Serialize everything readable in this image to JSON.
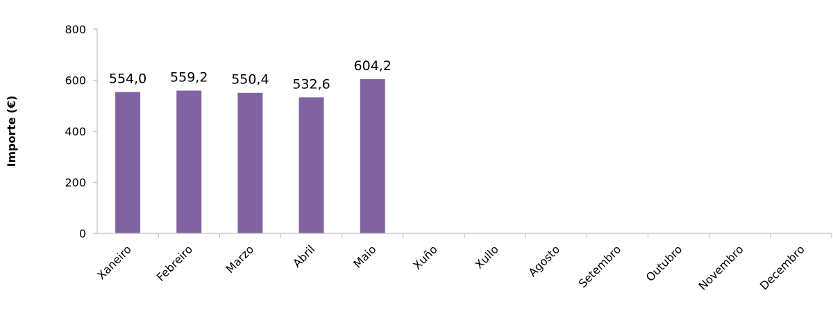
{
  "chart_data": {
    "type": "bar",
    "ylabel": "Importe (€)",
    "xlabel": "",
    "ylim": [
      0,
      800
    ],
    "yticks": [
      0,
      200,
      400,
      600,
      800
    ],
    "grid": false,
    "categories": [
      "Xaneiro",
      "Febreiro",
      "Marzo",
      "Abril",
      "Maio",
      "Xuño",
      "Xullo",
      "Agosto",
      "Setembro",
      "Outubro",
      "Novembro",
      "Decembro"
    ],
    "values": [
      554.0,
      559.2,
      550.4,
      532.6,
      604.2,
      null,
      null,
      null,
      null,
      null,
      null,
      null
    ],
    "data_labels": [
      "554,0",
      "559,2",
      "550,4",
      "532,6",
      "604,2",
      "",
      "",
      "",
      "",
      "",
      "",
      ""
    ],
    "bar_color": "#8064a2"
  }
}
